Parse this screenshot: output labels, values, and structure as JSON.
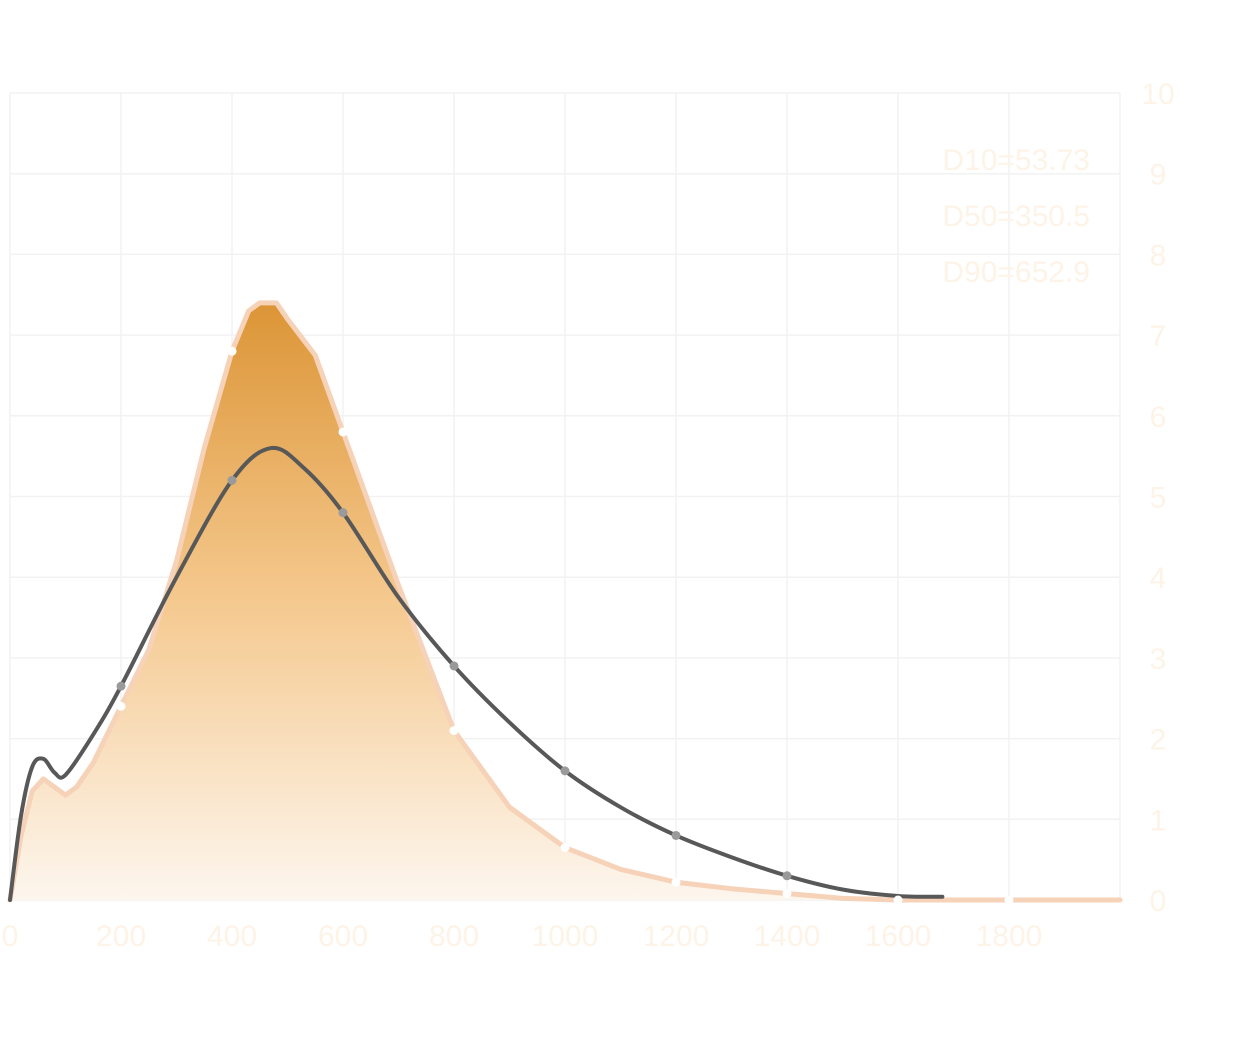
{
  "chart_data": {
    "type": "area",
    "xlim": [
      0,
      2000
    ],
    "ylim": [
      0,
      10
    ],
    "x_ticks": [
      "0",
      "200",
      "400",
      "600",
      "800",
      "1000",
      "1200",
      "1400",
      "1600",
      "1800"
    ],
    "y_ticks": [
      "0",
      "1",
      "2",
      "3",
      "4",
      "5",
      "6",
      "7",
      "8",
      "9",
      "10"
    ],
    "grid": true,
    "annotations": [
      "D10=53.73",
      "D50=350.5",
      "D90=652.9"
    ],
    "colors": {
      "area_top": "#dc9536",
      "area_mid": "#f5c98f",
      "area_bottom": "#fdf6ee",
      "area_outline": "#f6d2b8",
      "line": "#585858",
      "line_marker": "#9a9a9a",
      "area_marker": "#ffffff",
      "grid": "#f2f2f2",
      "text": "#fdf3e6"
    },
    "series": [
      {
        "type": "area",
        "smooth": false,
        "values": [
          {
            "x": 0,
            "y": 0
          },
          {
            "x": 20,
            "y": 0.8
          },
          {
            "x": 40,
            "y": 1.35
          },
          {
            "x": 60,
            "y": 1.5
          },
          {
            "x": 80,
            "y": 1.4
          },
          {
            "x": 100,
            "y": 1.3
          },
          {
            "x": 120,
            "y": 1.4
          },
          {
            "x": 150,
            "y": 1.7
          },
          {
            "x": 200,
            "y": 2.4
          },
          {
            "x": 250,
            "y": 3.1
          },
          {
            "x": 300,
            "y": 4.2
          },
          {
            "x": 350,
            "y": 5.6
          },
          {
            "x": 400,
            "y": 6.8
          },
          {
            "x": 430,
            "y": 7.3
          },
          {
            "x": 450,
            "y": 7.4
          },
          {
            "x": 480,
            "y": 7.4
          },
          {
            "x": 500,
            "y": 7.2
          },
          {
            "x": 550,
            "y": 6.75
          },
          {
            "x": 600,
            "y": 5.8
          },
          {
            "x": 700,
            "y": 3.9
          },
          {
            "x": 800,
            "y": 2.1
          },
          {
            "x": 900,
            "y": 1.15
          },
          {
            "x": 1000,
            "y": 0.65
          },
          {
            "x": 1100,
            "y": 0.38
          },
          {
            "x": 1200,
            "y": 0.22
          },
          {
            "x": 1300,
            "y": 0.14
          },
          {
            "x": 1400,
            "y": 0.08
          },
          {
            "x": 1500,
            "y": 0.02
          },
          {
            "x": 1600,
            "y": 0
          },
          {
            "x": 2000,
            "y": 0
          }
        ],
        "markers_x": [
          200,
          400,
          600,
          800,
          1000,
          1200,
          1400,
          1600,
          1800
        ]
      },
      {
        "type": "line",
        "smooth": true,
        "values": [
          {
            "x": 0,
            "y": 0
          },
          {
            "x": 20,
            "y": 1.05
          },
          {
            "x": 40,
            "y": 1.65
          },
          {
            "x": 60,
            "y": 1.75
          },
          {
            "x": 80,
            "y": 1.58
          },
          {
            "x": 100,
            "y": 1.55
          },
          {
            "x": 150,
            "y": 2.05
          },
          {
            "x": 200,
            "y": 2.65
          },
          {
            "x": 300,
            "y": 4.0
          },
          {
            "x": 400,
            "y": 5.2
          },
          {
            "x": 470,
            "y": 5.6
          },
          {
            "x": 530,
            "y": 5.35
          },
          {
            "x": 600,
            "y": 4.8
          },
          {
            "x": 700,
            "y": 3.75
          },
          {
            "x": 800,
            "y": 2.9
          },
          {
            "x": 900,
            "y": 2.2
          },
          {
            "x": 1000,
            "y": 1.6
          },
          {
            "x": 1100,
            "y": 1.15
          },
          {
            "x": 1200,
            "y": 0.8
          },
          {
            "x": 1300,
            "y": 0.53
          },
          {
            "x": 1400,
            "y": 0.3
          },
          {
            "x": 1500,
            "y": 0.13
          },
          {
            "x": 1600,
            "y": 0.05
          },
          {
            "x": 1680,
            "y": 0.04
          }
        ],
        "markers_x": [
          200,
          400,
          600,
          800,
          1000,
          1200,
          1400
        ]
      }
    ]
  }
}
